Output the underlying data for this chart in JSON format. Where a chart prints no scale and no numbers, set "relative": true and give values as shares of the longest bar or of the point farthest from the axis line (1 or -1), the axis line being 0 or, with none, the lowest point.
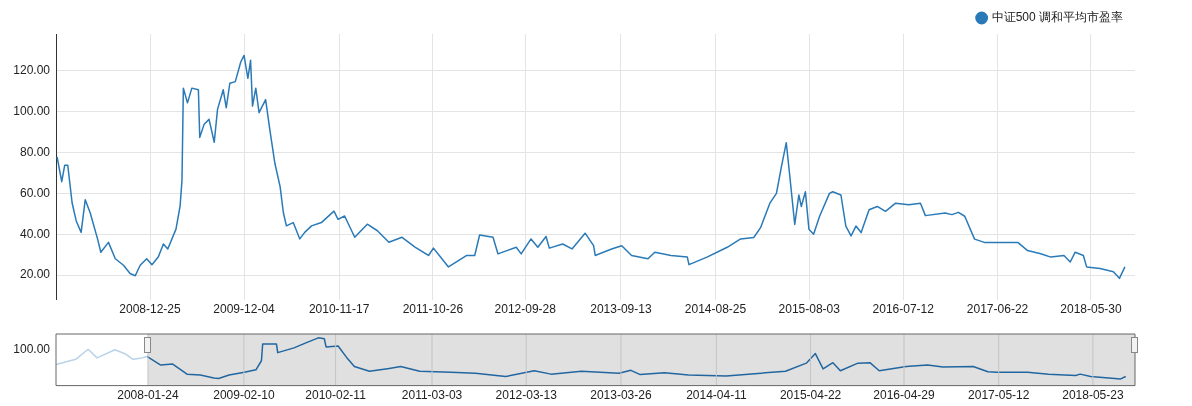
{
  "chart_data": [
    {
      "type": "line",
      "x": [
        "2008-01-20",
        "2008-02-06",
        "2008-02-17",
        "2008-02-28",
        "2008-03-15",
        "2008-03-30",
        "2008-04-17",
        "2008-05-02",
        "2008-05-20",
        "2008-06-16",
        "2008-06-28",
        "2008-07-26",
        "2008-08-20",
        "2008-09-19",
        "2008-10-13",
        "2008-11-01",
        "2008-11-19",
        "2008-12-13",
        "2009-01-01",
        "2009-01-24",
        "2009-02-12",
        "2009-02-28",
        "2009-03-30",
        "2009-04-14",
        "2009-04-21",
        "2009-04-26",
        "2009-05-11",
        "2009-05-27",
        "2009-06-20",
        "2009-06-25",
        "2009-07-11",
        "2009-07-29",
        "2009-08-17",
        "2009-08-29",
        "2009-09-19",
        "2009-09-30",
        "2009-10-13",
        "2009-11-02",
        "2009-11-22",
        "2009-12-04",
        "2009-12-18",
        "2009-12-28",
        "2010-01-04",
        "2010-01-16",
        "2010-01-28",
        "2010-02-21",
        "2010-03-09",
        "2010-03-27",
        "2010-04-15",
        "2010-04-27",
        "2010-05-08",
        "2010-06-02",
        "2010-06-26",
        "2010-07-14",
        "2010-08-08",
        "2010-09-13",
        "2010-10-29",
        "2010-11-13",
        "2010-12-07",
        "2011-01-13",
        "2011-02-28",
        "2011-04-06",
        "2011-05-18",
        "2011-07-05",
        "2011-08-23",
        "2011-10-10",
        "2011-10-28",
        "2011-12-22",
        "2012-02-27",
        "2012-03-27",
        "2012-04-14",
        "2012-06-02",
        "2012-06-20",
        "2012-08-26",
        "2012-09-13",
        "2012-10-19",
        "2012-11-13",
        "2012-12-13",
        "2012-12-25",
        "2013-02-12",
        "2013-03-18",
        "2013-05-05",
        "2013-06-05",
        "2013-06-11",
        "2013-08-10",
        "2013-09-16",
        "2013-10-22",
        "2013-12-21",
        "2014-01-15",
        "2014-03-15",
        "2014-05-14",
        "2014-05-20",
        "2014-07-25",
        "2014-10-07",
        "2014-11-25",
        "2015-01-12",
        "2015-02-06",
        "2015-03-12",
        "2015-04-05",
        "2015-04-23",
        "2015-05-11",
        "2015-05-23",
        "2015-06-11",
        "2015-06-26",
        "2015-07-05",
        "2015-07-20",
        "2015-08-02",
        "2015-08-19",
        "2015-09-10",
        "2015-10-16",
        "2015-10-28",
        "2015-11-27",
        "2015-12-15",
        "2016-01-03",
        "2016-01-21",
        "2016-02-09",
        "2016-03-09",
        "2016-04-08",
        "2016-05-08",
        "2016-06-14",
        "2016-08-01",
        "2016-09-13",
        "2016-10-01",
        "2016-12-12",
        "2017-01-06",
        "2017-01-30",
        "2017-02-22",
        "2017-03-30",
        "2017-05-05",
        "2017-07-16",
        "2017-09-04",
        "2017-10-10",
        "2017-11-27",
        "2018-01-03",
        "2018-02-20",
        "2018-03-15",
        "2018-04-02",
        "2018-05-02",
        "2018-05-14",
        "2018-07-02",
        "2018-08-20",
        "2018-09-11",
        "2018-10-01"
      ],
      "series": [
        {
          "name": "中证500 调和平均市盈率",
          "color": "#2a7ab8",
          "values": [
            77.8,
            65.7,
            73.8,
            73.8,
            55.3,
            46.5,
            40.9,
            56.9,
            50.5,
            37.7,
            31.2,
            36,
            28,
            24.8,
            20.8,
            19.7,
            24.8,
            28,
            25.1,
            28.8,
            35.2,
            32.8,
            42.5,
            53.7,
            66.5,
            111.5,
            104.3,
            111.5,
            110.7,
            87.4,
            93.8,
            96.2,
            85,
            101.1,
            110.7,
            101.9,
            113.9,
            114.7,
            124.3,
            127.5,
            116.3,
            125.1,
            102.7,
            111.5,
            99.5,
            105.9,
            90.6,
            74.6,
            63.3,
            50.5,
            44.1,
            45.7,
            37.7,
            40.9,
            44.1,
            45.7,
            51.3,
            47.3,
            48.9,
            38.5,
            44.9,
            41.7,
            36.1,
            38.5,
            33.6,
            29.6,
            33.2,
            24,
            29.6,
            29.6,
            39.6,
            38.5,
            30.4,
            33.6,
            30.4,
            37.7,
            33.6,
            38.9,
            33.2,
            35.2,
            32.8,
            40.5,
            34.4,
            29.6,
            32.8,
            34.4,
            29.6,
            28,
            31.2,
            29.6,
            28.8,
            25.1,
            28.8,
            33.6,
            37.7,
            38.4,
            43.2,
            55.2,
            60,
            72.8,
            84.8,
            69.6,
            44.8,
            59.2,
            53.6,
            60.8,
            42.4,
            40,
            48.8,
            60,
            60.8,
            59.2,
            44,
            39.2,
            44,
            40.8,
            52,
            53.6,
            51.2,
            55.2,
            54.4,
            55.2,
            49.1,
            50.4,
            49.6,
            50.7,
            48.8,
            37.6,
            36,
            36,
            36,
            32,
            30.4,
            28.8,
            29.6,
            26.4,
            31.2,
            29.6,
            24,
            23.2,
            21.6,
            18.4,
            24
          ]
        }
      ],
      "xlim": [
        "2008-01-16",
        "2018-11-07"
      ],
      "xticks": [
        "2008-12-25",
        "2009-12-04",
        "2010-11-17",
        "2011-10-26",
        "2012-09-28",
        "2013-09-13",
        "2014-08-25",
        "2015-08-03",
        "2016-07-12",
        "2017-06-22",
        "2018-05-30"
      ],
      "ylim": [
        8,
        138
      ],
      "yticks": [
        {
          "value": 20,
          "label": "20.00"
        },
        {
          "value": 40,
          "label": "40.00"
        },
        {
          "value": 60,
          "label": "60.00"
        },
        {
          "value": 80,
          "label": "80.00"
        },
        {
          "value": 100,
          "label": "100.00"
        },
        {
          "value": 120,
          "label": "120.00"
        }
      ],
      "grid": true,
      "legend": "top right",
      "marker": "none"
    },
    {
      "type": "line",
      "series": [
        {
          "color": "#b8d3ea",
          "x": [
            "2007-01-22",
            "2007-04-11",
            "2007-05-30",
            "2007-07-05",
            "2007-09-14",
            "2007-10-27",
            "2007-11-25",
            "2007-12-31",
            "2008-01-20"
          ],
          "values": [
            0.44,
            0.55,
            0.76,
            0.58,
            0.75,
            0.66,
            0.55,
            0.58,
            0.61
          ]
        },
        {
          "color": "#2266a0",
          "x": [
            "2008-01-20",
            "2008-03-15",
            "2008-05-02",
            "2008-06-28",
            "2008-08-20",
            "2008-10-13",
            "2008-11-01",
            "2008-12-13",
            "2009-02-12",
            "2009-03-30",
            "2009-04-21",
            "2009-04-26",
            "2009-06-20",
            "2009-06-25",
            "2009-08-29",
            "2009-10-13",
            "2009-12-04",
            "2009-12-28",
            "2010-01-04",
            "2010-02-21",
            "2010-03-27",
            "2010-04-27",
            "2010-06-26",
            "2010-09-13",
            "2010-10-29",
            "2011-01-13",
            "2011-05-18",
            "2011-08-23",
            "2011-12-22",
            "2012-04-14",
            "2012-06-20",
            "2012-10-19",
            "2013-03-18",
            "2013-05-05",
            "2013-06-11",
            "2013-09-16",
            "2013-12-21",
            "2014-05-20",
            "2014-10-07",
            "2015-01-12",
            "2015-04-05",
            "2015-05-11",
            "2015-06-11",
            "2015-07-20",
            "2015-08-19",
            "2015-10-28",
            "2015-12-15",
            "2016-01-21",
            "2016-05-08",
            "2016-08-01",
            "2016-10-01",
            "2017-01-30",
            "2017-03-30",
            "2017-05-05",
            "2017-09-04",
            "2017-11-27",
            "2018-03-15",
            "2018-04-02",
            "2018-05-14",
            "2018-09-11",
            "2018-10-01"
          ],
          "values": [
            0.61,
            0.43,
            0.45,
            0.24,
            0.22,
            0.16,
            0.15,
            0.22,
            0.28,
            0.33,
            0.52,
            0.87,
            0.87,
            0.69,
            0.79,
            0.89,
            1,
            0.98,
            0.81,
            0.83,
            0.59,
            0.4,
            0.3,
            0.36,
            0.4,
            0.3,
            0.28,
            0.26,
            0.19,
            0.31,
            0.24,
            0.3,
            0.26,
            0.32,
            0.23,
            0.27,
            0.22,
            0.2,
            0.26,
            0.3,
            0.47,
            0.67,
            0.35,
            0.48,
            0.31,
            0.47,
            0.48,
            0.31,
            0.4,
            0.43,
            0.39,
            0.4,
            0.29,
            0.28,
            0.28,
            0.24,
            0.21,
            0.24,
            0.19,
            0.14,
            0.19
          ]
        }
      ],
      "xlim": [
        "2007-01-22",
        "2018-11-07"
      ],
      "xticks": [
        "2008-01-24",
        "2009-02-10",
        "2010-02-11",
        "2011-03-03",
        "2012-03-13",
        "2013-03-26",
        "2014-04-11",
        "2015-04-22",
        "2016-04-29",
        "2017-05-12",
        "2018-05-23"
      ],
      "relative": true,
      "annotations": [
        "100.00"
      ],
      "bands": [
        {
          "axis": "x",
          "from": "2008-01-24",
          "to": "2018-11-07",
          "color": "#e0e0e0"
        }
      ],
      "grid": true,
      "marker": "none"
    }
  ]
}
